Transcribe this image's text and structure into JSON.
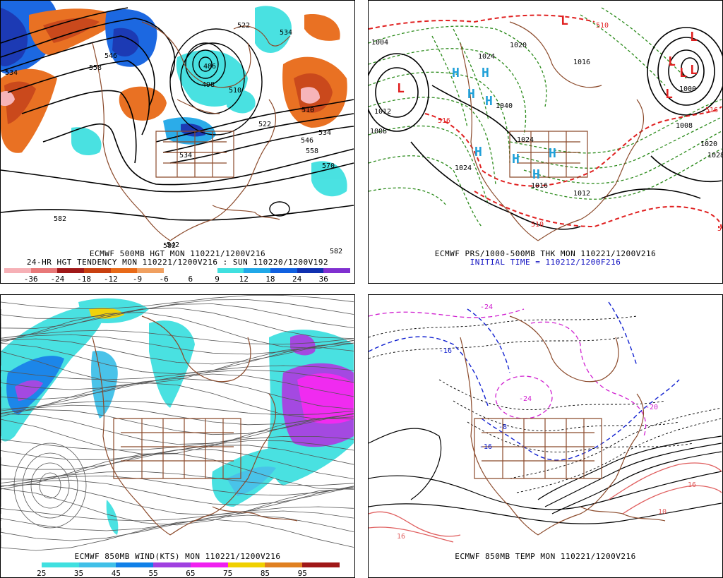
{
  "panels": {
    "p1": {
      "caption_line1": "ECMWF 500MB HGT MON 110221/1200V216",
      "caption_line2": "24-HR HGT TENDENCY MON 110221/1200V216 : SUN 110220/1200V192",
      "colorbar": {
        "colors": [
          "#f6b0b6",
          "#e87878",
          "#a01818",
          "#c84010",
          "#e86a18",
          "#f0a060",
          "#ffffff",
          "#ffffff",
          "#40e0e0",
          "#20a8e8",
          "#1060e0",
          "#1030b0",
          "#8030d0"
        ],
        "labels": [
          "-36",
          "-24",
          "-18",
          "-12",
          "-9",
          "-6",
          "6",
          "9",
          "12",
          "18",
          "24",
          "36"
        ]
      },
      "contour_labels": [
        "534",
        "522",
        "534",
        "546",
        "558",
        "486",
        "498",
        "510",
        "522",
        "534",
        "546",
        "558",
        "570",
        "582",
        "582",
        "582",
        "510",
        "542",
        "534"
      ]
    },
    "p2": {
      "caption_line1": "ECMWF PRS/1000-500MB THK MON 110221/1200V216",
      "caption_line2": "INITIAL TIME = 110212/1200F216",
      "contour_labels": [
        "1004",
        "1008",
        "1024",
        "1024",
        "1016",
        "1012",
        "1020",
        "1028",
        "1000",
        "1040",
        "1008",
        "1012",
        "1024",
        "1016",
        "1020",
        "510",
        "516",
        "510",
        "516",
        "5"
      ]
    },
    "p3": {
      "caption_line1": "ECMWF 850MB WIND(KTS) MON 110221/1200V216",
      "colorbar": {
        "colors": [
          "#ffffff",
          "#40e0e0",
          "#40c0e8",
          "#1080e8",
          "#a040e0",
          "#f020f0",
          "#f0d000",
          "#e08020",
          "#a01818"
        ],
        "labels": [
          "25",
          "35",
          "45",
          "55",
          "65",
          "75",
          "85",
          "95"
        ]
      }
    },
    "p4": {
      "caption_line1": "ECMWF 850MB TEMP MON 110221/1200V216",
      "contour_labels": [
        "-24",
        "-16",
        "-24",
        "-20",
        "-8",
        "-16",
        "16",
        "10",
        "16"
      ]
    }
  }
}
